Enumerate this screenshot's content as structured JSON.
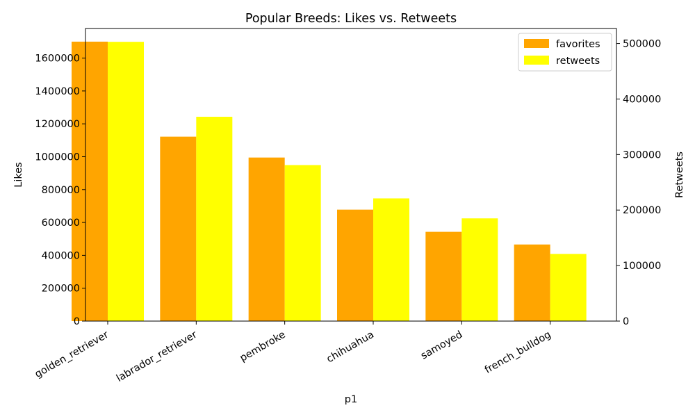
{
  "chart_data": {
    "type": "bar",
    "title": "Popular Breeds: Likes vs. Retweets",
    "xlabel": "p1",
    "ylabel": "Likes",
    "y2label": "Retweets",
    "categories": [
      "golden_retriever",
      "labrador_retriever",
      "pembroke",
      "chihuahua",
      "samoyed",
      "french_bulldog"
    ],
    "series": [
      {
        "name": "favorites",
        "axis": "left",
        "color": "#ffa500",
        "values": [
          1700000,
          1122000,
          995000,
          678000,
          543000,
          466000
        ]
      },
      {
        "name": "retweets",
        "axis": "right",
        "color": "#ffff00",
        "values": [
          503000,
          368000,
          281000,
          221000,
          185000,
          121000
        ]
      }
    ],
    "ylim": [
      0,
      1780000
    ],
    "y2lim": [
      0,
      527000
    ],
    "yticks": [
      0,
      200000,
      400000,
      600000,
      800000,
      1000000,
      1200000,
      1400000,
      1600000
    ],
    "y2ticks": [
      0,
      100000,
      200000,
      300000,
      400000,
      500000
    ],
    "legend_position": "top-right",
    "grid": false
  }
}
